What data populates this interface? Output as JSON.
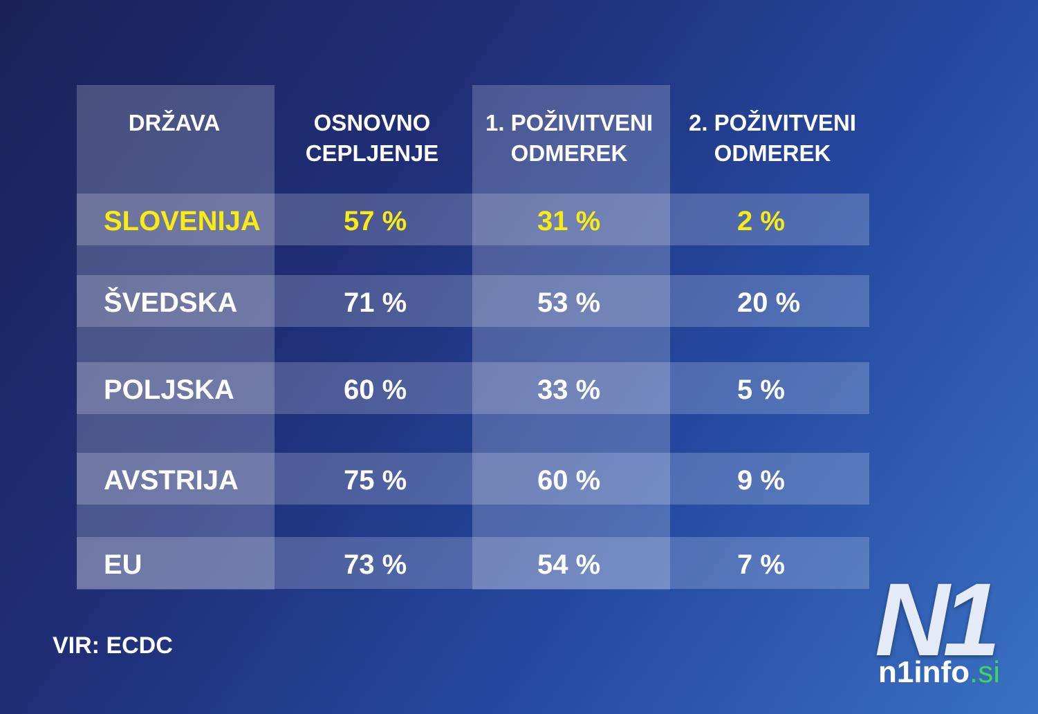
{
  "table": {
    "header": [
      "DRŽAVA",
      [
        "OSNOVNO",
        "CEPLJENJE"
      ],
      [
        "1. POŽIVITVENI",
        "ODMEREK"
      ],
      [
        "2. POŽIVITVENI",
        "ODMEREK"
      ]
    ],
    "rows": [
      [
        "SLOVENIJA",
        "57 %",
        "31 %",
        "2 %"
      ],
      [
        "ŠVEDSKA",
        "71 %",
        "53 %",
        "20 %"
      ],
      [
        "POLJSKA",
        "60 %",
        "33 %",
        "5 %"
      ],
      [
        "AVSTRIJA",
        "75 %",
        "60 %",
        "9 %"
      ],
      [
        "EU",
        "73 %",
        "54 %",
        "7 %"
      ]
    ]
  },
  "source": "VIR: ECDC",
  "logo": {
    "mark": "N1",
    "name": "n1info",
    "domain": ".si"
  }
}
